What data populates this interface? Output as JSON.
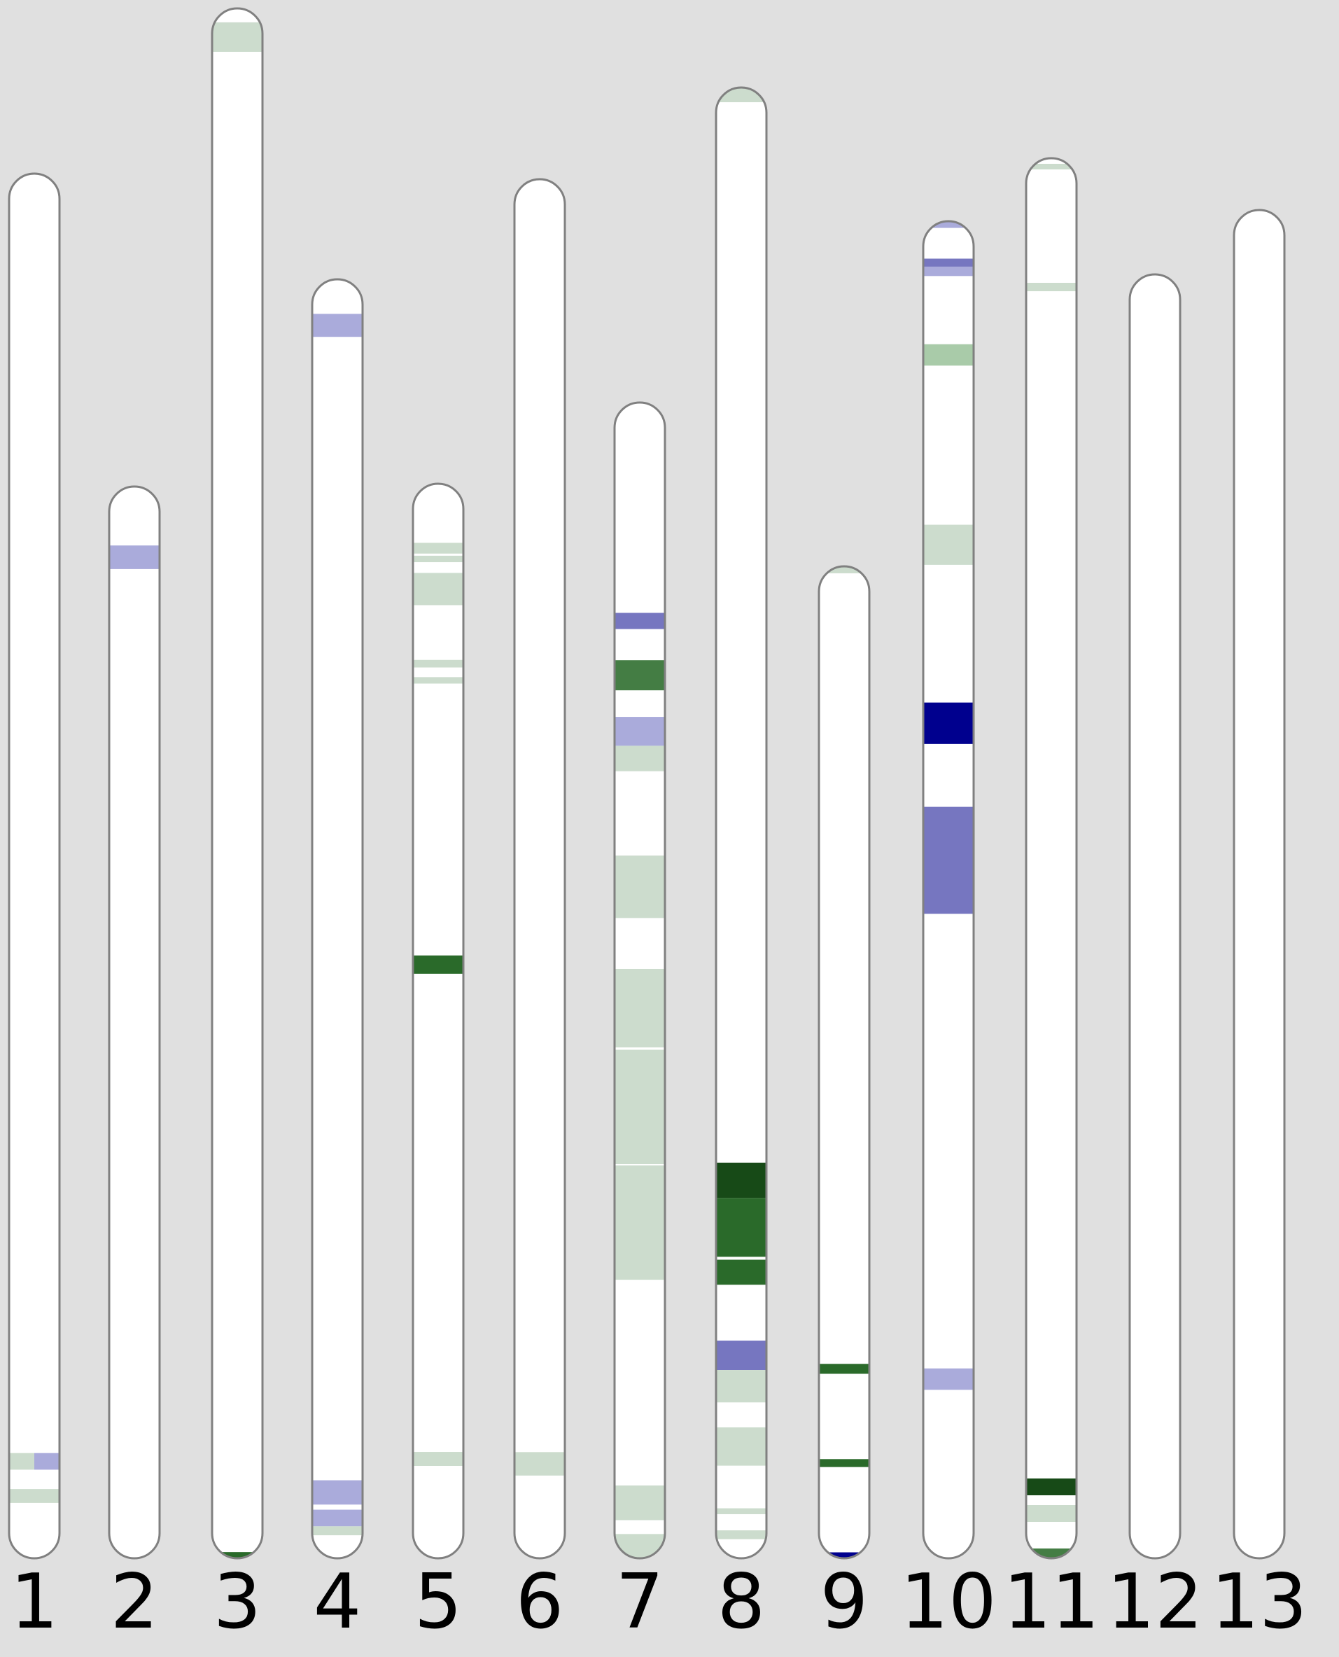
{
  "colors": {
    "background": "#e0e0e0",
    "chromosome_fill": "#ffffff",
    "chromosome_outline": "#808080",
    "light_green": "#ccdccd",
    "medium_green": "#a9cba9",
    "green": "#2a6a2a",
    "mid_green": "#447d44",
    "dark_green": "#174a17",
    "light_blue": "#aaabdb",
    "medium_blue": "#7676c0",
    "dark_blue": "#00008e"
  },
  "chromosomes": [
    {
      "label": "1",
      "bands": [
        {
          "start": 0.924,
          "end": 0.936,
          "color": "light_green",
          "part": "left"
        },
        {
          "start": 0.924,
          "end": 0.936,
          "color": "light_blue",
          "part": "right"
        },
        {
          "start": 0.95,
          "end": 0.96,
          "color": "light_green"
        }
      ]
    },
    {
      "label": "2",
      "bands": [
        {
          "start": 0.055,
          "end": 0.077,
          "color": "light_blue"
        }
      ]
    },
    {
      "label": "3",
      "bands": [
        {
          "start": 0.009,
          "end": 0.028,
          "color": "light_green"
        },
        {
          "start": 0.996,
          "end": 1.0,
          "color": "green"
        }
      ]
    },
    {
      "label": "4",
      "bands": [
        {
          "start": 0.027,
          "end": 0.045,
          "color": "light_blue"
        },
        {
          "start": 0.939,
          "end": 0.958,
          "color": "light_blue"
        },
        {
          "start": 0.962,
          "end": 0.975,
          "color": "light_blue"
        },
        {
          "start": 0.975,
          "end": 0.982,
          "color": "light_green"
        }
      ]
    },
    {
      "label": "5",
      "bands": [
        {
          "start": 0.055,
          "end": 0.065,
          "color": "light_green"
        },
        {
          "start": 0.067,
          "end": 0.073,
          "color": "light_green"
        },
        {
          "start": 0.083,
          "end": 0.113,
          "color": "light_green"
        },
        {
          "start": 0.164,
          "end": 0.171,
          "color": "light_green"
        },
        {
          "start": 0.18,
          "end": 0.186,
          "color": "light_green"
        },
        {
          "start": 0.439,
          "end": 0.456,
          "color": "green"
        },
        {
          "start": 0.901,
          "end": 0.914,
          "color": "light_green"
        }
      ]
    },
    {
      "label": "6",
      "bands": [
        {
          "start": 0.923,
          "end": 0.94,
          "color": "light_green"
        }
      ]
    },
    {
      "label": "7",
      "bands": [
        {
          "start": 0.182,
          "end": 0.196,
          "color": "medium_blue"
        },
        {
          "start": 0.223,
          "end": 0.249,
          "color": "mid_green"
        },
        {
          "start": 0.272,
          "end": 0.297,
          "color": "light_blue"
        },
        {
          "start": 0.297,
          "end": 0.319,
          "color": "light_green"
        },
        {
          "start": 0.392,
          "end": 0.446,
          "color": "light_green"
        },
        {
          "start": 0.49,
          "end": 0.558,
          "color": "light_green"
        },
        {
          "start": 0.56,
          "end": 0.659,
          "color": "light_green"
        },
        {
          "start": 0.66,
          "end": 0.759,
          "color": "light_green"
        },
        {
          "start": 0.937,
          "end": 0.967,
          "color": "light_green"
        },
        {
          "start": 0.979,
          "end": 1.0,
          "color": "light_green"
        }
      ]
    },
    {
      "label": "8",
      "bands": [
        {
          "start": 0.0,
          "end": 0.01,
          "color": "light_green"
        },
        {
          "start": 0.731,
          "end": 0.755,
          "color": "dark_green"
        },
        {
          "start": 0.755,
          "end": 0.795,
          "color": "green"
        },
        {
          "start": 0.797,
          "end": 0.814,
          "color": "green"
        },
        {
          "start": 0.852,
          "end": 0.872,
          "color": "medium_blue"
        },
        {
          "start": 0.872,
          "end": 0.894,
          "color": "light_green"
        },
        {
          "start": 0.911,
          "end": 0.937,
          "color": "light_green"
        },
        {
          "start": 0.966,
          "end": 0.97,
          "color": "light_green"
        },
        {
          "start": 0.981,
          "end": 0.987,
          "color": "light_green"
        }
      ]
    },
    {
      "label": "9",
      "bands": [
        {
          "start": 0.0,
          "end": 0.007,
          "color": "light_green"
        },
        {
          "start": 0.804,
          "end": 0.814,
          "color": "green"
        },
        {
          "start": 0.9,
          "end": 0.908,
          "color": "green"
        },
        {
          "start": 0.994,
          "end": 1.0,
          "color": "dark_blue"
        }
      ]
    },
    {
      "label": "10",
      "bands": [
        {
          "start": 0.0,
          "end": 0.005,
          "color": "light_blue"
        },
        {
          "start": 0.028,
          "end": 0.034,
          "color": "medium_blue"
        },
        {
          "start": 0.034,
          "end": 0.041,
          "color": "light_blue"
        },
        {
          "start": 0.092,
          "end": 0.108,
          "color": "medium_green"
        },
        {
          "start": 0.227,
          "end": 0.257,
          "color": "light_green"
        },
        {
          "start": 0.36,
          "end": 0.391,
          "color": "dark_blue"
        },
        {
          "start": 0.438,
          "end": 0.518,
          "color": "medium_blue"
        },
        {
          "start": 0.858,
          "end": 0.874,
          "color": "light_blue"
        }
      ]
    },
    {
      "label": "11",
      "bands": [
        {
          "start": 0.004,
          "end": 0.008,
          "color": "light_green"
        },
        {
          "start": 0.089,
          "end": 0.095,
          "color": "light_green"
        },
        {
          "start": 0.943,
          "end": 0.955,
          "color": "dark_green"
        },
        {
          "start": 0.962,
          "end": 0.974,
          "color": "light_green"
        },
        {
          "start": 0.993,
          "end": 1.0,
          "color": "mid_green"
        }
      ]
    },
    {
      "label": "12",
      "bands": []
    },
    {
      "label": "13",
      "bands": []
    }
  ]
}
